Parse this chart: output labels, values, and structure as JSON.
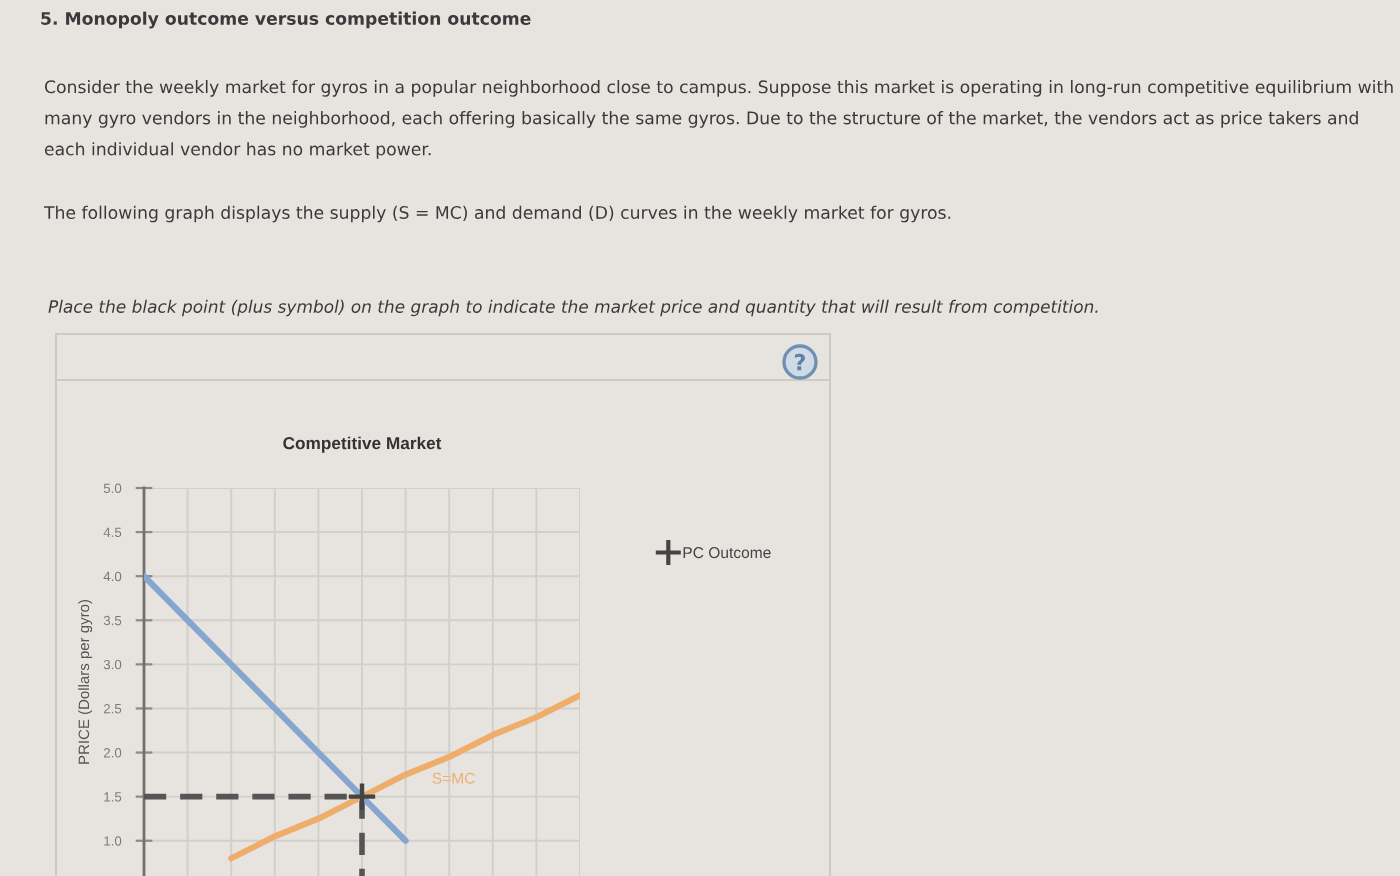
{
  "chart_data": {
    "type": "line",
    "title": "Competitive Market",
    "ylabel": "PRICE (Dollars per gyro)",
    "annotations": [
      "5. Monopoly outcome versus competition outcome",
      "Consider the weekly market for gyros in a popular neighborhood close to campus. Suppose this market is operating in long-run competitive equilibrium with many gyro vendors in the neighborhood, each offering basically the same gyros. Due to the structure of the market, the vendors act as price takers and each individual vendor has no market power.",
      "The following graph displays the supply (S = MC) and demand (D) curves in the weekly market for gyros.",
      "Place the black point (plus symbol) on the graph to indicate the market price and quantity that will result from competition."
    ],
    "categories": [
      null,
      null,
      null,
      null,
      null,
      null,
      null,
      null,
      null,
      null,
      null
    ],
    "series": [
      {
        "color": "#86a5cf",
        "values": [
          4.0,
          3.5,
          3.0,
          2.5,
          2.0,
          1.5,
          1.0,
          null,
          null,
          null,
          null
        ]
      },
      {
        "name": "S=MC",
        "color": "#efad6b",
        "values": [
          null,
          null,
          0.8,
          1.05,
          1.25,
          1.5,
          1.75,
          1.95,
          2.2,
          2.4,
          2.65
        ]
      },
      {
        "color": "#555555",
        "line_style": "dashed",
        "values": [
          1.5,
          1.5,
          1.5,
          1.5,
          1.5,
          1.5,
          null,
          null,
          null,
          null,
          null
        ]
      },
      {
        "name": "PC Outcome",
        "type": "scatter",
        "color": "#444444",
        "marker": "cross",
        "line_style": "dashed",
        "values": [
          null,
          null,
          null,
          null,
          null,
          1.5,
          null,
          null,
          null,
          null,
          null
        ]
      }
    ],
    "ylim": [
      0.6,
      5.0
    ],
    "yticks": [
      {
        "value": 1,
        "label": "1.0"
      },
      1.5,
      {
        "value": 2,
        "label": "2.0"
      },
      2.5,
      {
        "value": 3,
        "label": "3.0"
      },
      3.5,
      {
        "value": 4,
        "label": "4.0"
      },
      4.5,
      {
        "value": 5,
        "label": "5.0"
      }
    ],
    "grid": true,
    "legend": "right",
    "tick_labels": "y"
  }
}
